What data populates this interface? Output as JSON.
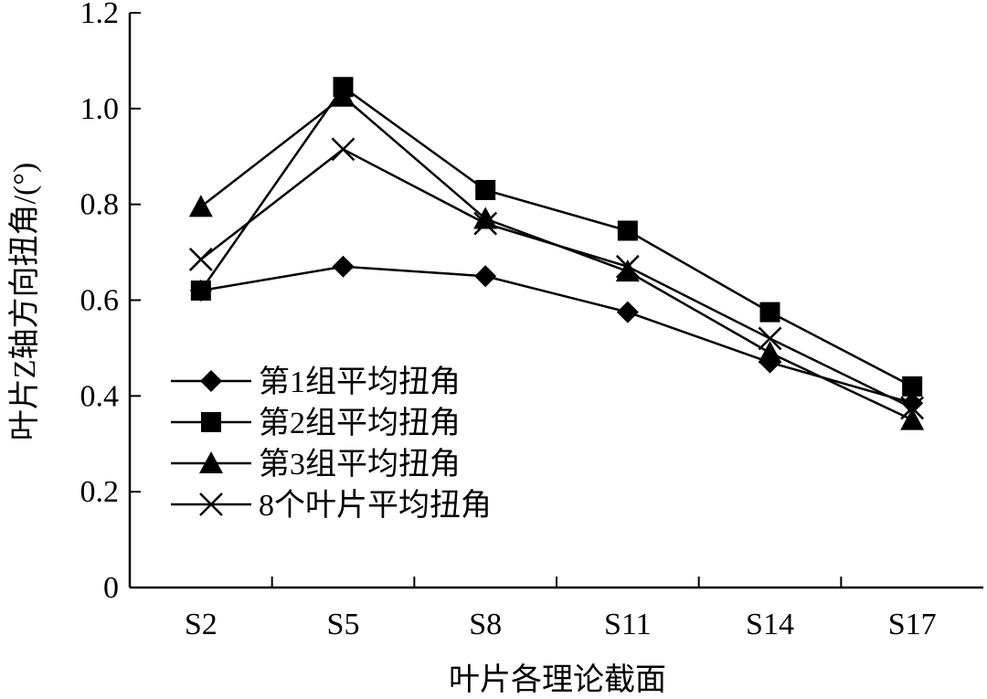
{
  "chart_data": {
    "type": "line",
    "title": "",
    "xlabel": "叶片各理论截面",
    "ylabel": "叶片Z轴方向扭角/(°)",
    "categories": [
      "S2",
      "S5",
      "S8",
      "S11",
      "S14",
      "S17"
    ],
    "ylim": [
      0,
      1.2
    ],
    "yticks": [
      "0",
      "0.2",
      "0.4",
      "0.6",
      "0.8",
      "1.0",
      "1.2"
    ],
    "grid": false,
    "legend_position": "bottom-left",
    "series": [
      {
        "name": "第1组平均扭角",
        "marker": "diamond",
        "values": [
          0.62,
          0.67,
          0.65,
          0.575,
          0.47,
          0.385
        ]
      },
      {
        "name": "第2组平均扭角",
        "marker": "square",
        "values": [
          0.62,
          1.045,
          0.83,
          0.745,
          0.575,
          0.42
        ]
      },
      {
        "name": "第3组平均扭角",
        "marker": "triangle",
        "values": [
          0.795,
          1.025,
          0.77,
          0.66,
          0.49,
          0.35
        ]
      },
      {
        "name": "8个叶片平均扭角",
        "marker": "x",
        "values": [
          0.685,
          0.915,
          0.76,
          0.67,
          0.52,
          0.375
        ]
      }
    ]
  }
}
